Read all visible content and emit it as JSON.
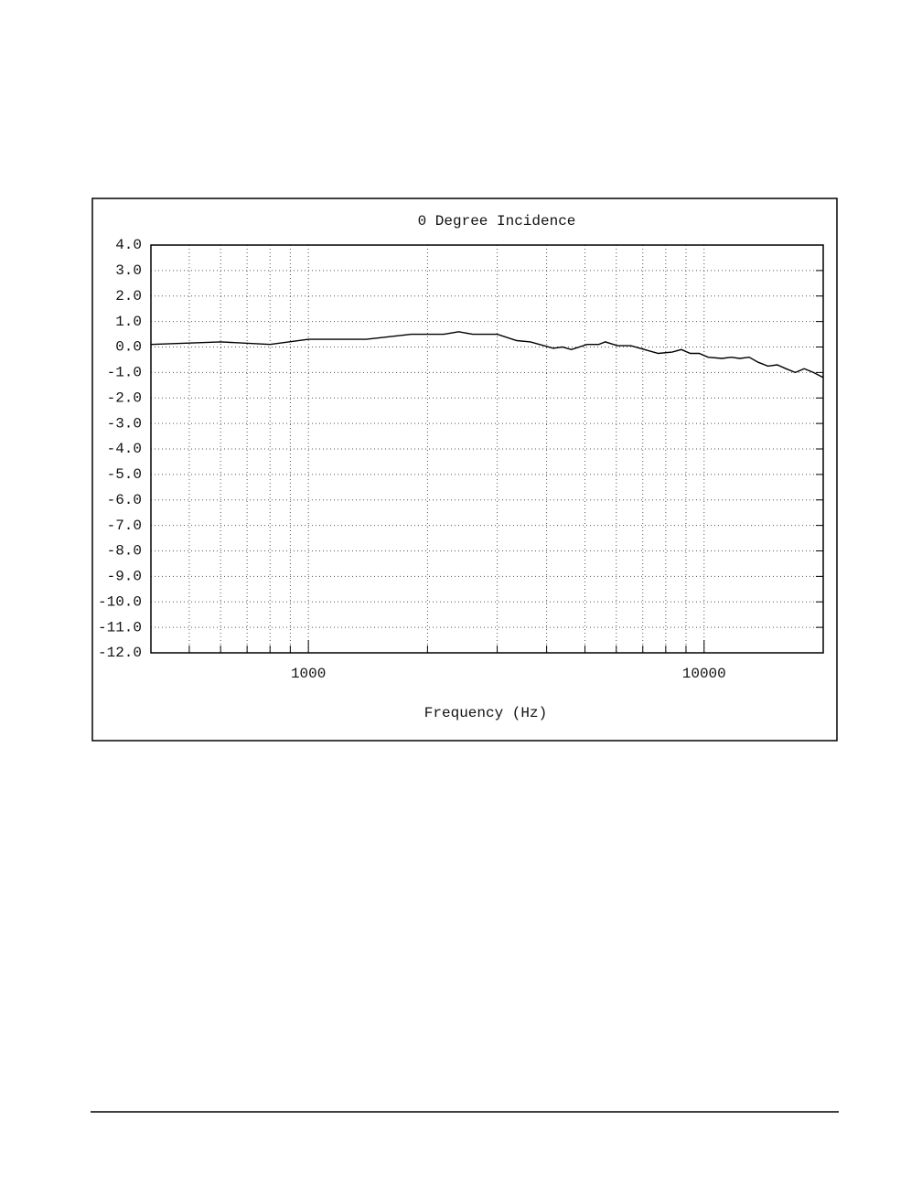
{
  "chart_data": {
    "type": "line",
    "title": "0 Degree Incidence",
    "x_label": "Frequency (Hz)",
    "x": [
      400,
      600,
      800,
      1000,
      1400,
      1820,
      2200,
      2400,
      2600,
      3000,
      3360,
      3640,
      4160,
      4380,
      4620,
      5060,
      5420,
      5630,
      6040,
      6530,
      7070,
      7660,
      8300,
      8760,
      9230,
      9720,
      10240,
      11100,
      11700,
      12300,
      13000,
      13700,
      14500,
      15300,
      16100,
      17000,
      17900,
      18900,
      20000
    ],
    "values": [
      0.1,
      0.2,
      0.1,
      0.3,
      0.3,
      0.5,
      0.5,
      0.6,
      0.5,
      0.5,
      0.25,
      0.2,
      -0.05,
      0.0,
      -0.1,
      0.1,
      0.1,
      0.2,
      0.05,
      0.05,
      -0.1,
      -0.25,
      -0.2,
      -0.1,
      -0.25,
      -0.25,
      -0.4,
      -0.45,
      -0.4,
      -0.45,
      -0.4,
      -0.6,
      -0.75,
      -0.7,
      -0.85,
      -1.0,
      -0.85,
      -1.0,
      -1.2
    ],
    "color": "#000000",
    "xlog": true,
    "xlim": [
      400,
      20000
    ],
    "xticks": [
      1000,
      10000
    ],
    "xminor": [
      500,
      600,
      700,
      800,
      900,
      2000,
      3000,
      4000,
      5000,
      6000,
      7000,
      8000,
      9000
    ],
    "ylim": [
      -12,
      4
    ],
    "yticks": [
      {
        "value": 4,
        "label": "4.0"
      },
      {
        "value": 3,
        "label": "3.0"
      },
      {
        "value": 2,
        "label": "2.0"
      },
      {
        "value": 1,
        "label": "1.0"
      },
      {
        "value": 0,
        "label": "0.0"
      },
      {
        "value": -1,
        "label": "-1.0"
      },
      {
        "value": -2,
        "label": "-2.0"
      },
      {
        "value": -3,
        "label": "-3.0"
      },
      {
        "value": -4,
        "label": "-4.0"
      },
      {
        "value": -5,
        "label": "-5.0"
      },
      {
        "value": -6,
        "label": "-6.0"
      },
      {
        "value": -7,
        "label": "-7.0"
      },
      {
        "value": -8,
        "label": "-8.0"
      },
      {
        "value": -9,
        "label": "-9.0"
      },
      {
        "value": -10,
        "label": "-10.0"
      },
      {
        "value": -11,
        "label": "-11.0"
      },
      {
        "value": -12,
        "label": "-12.0"
      }
    ],
    "grid": true
  }
}
